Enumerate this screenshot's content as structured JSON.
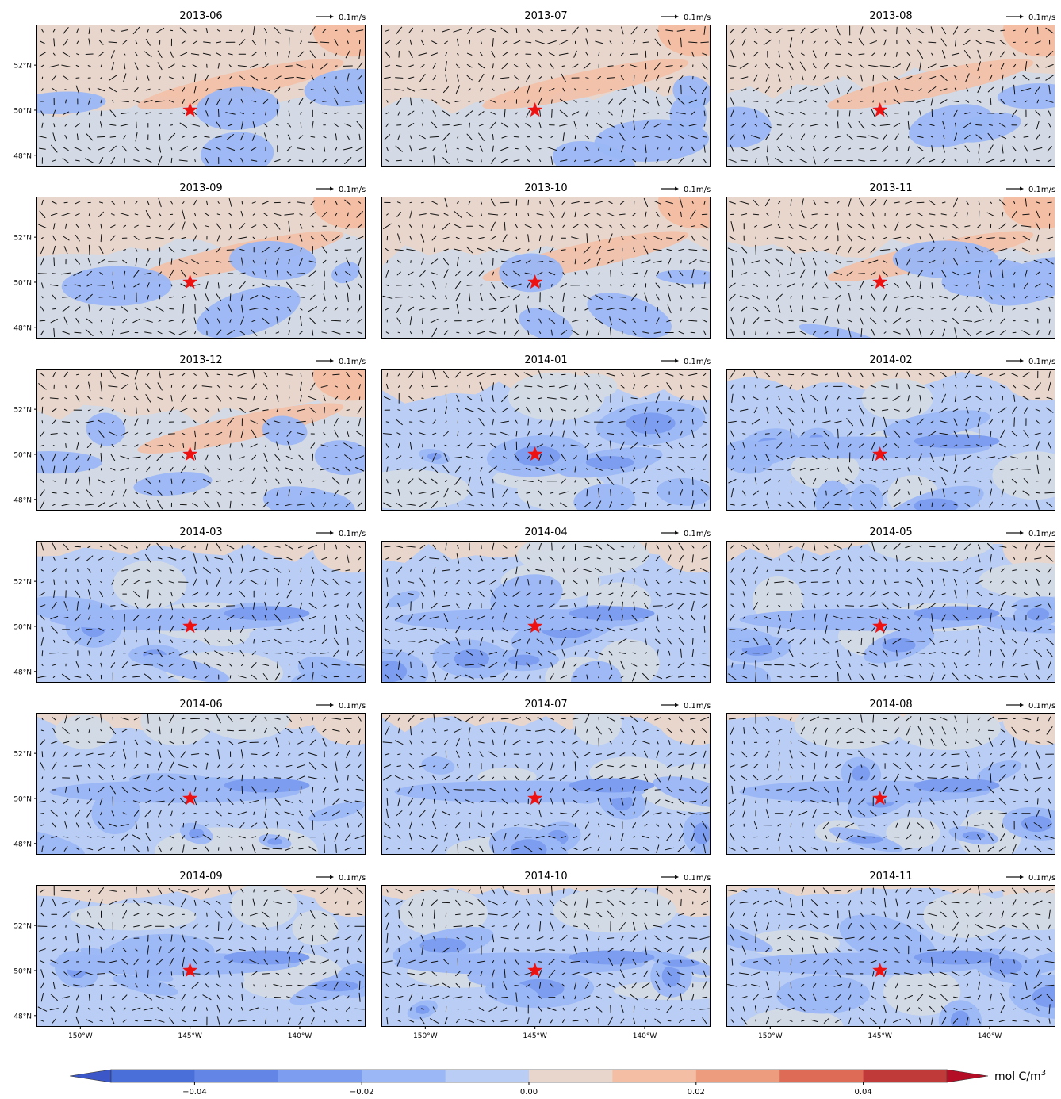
{
  "panels": [
    {
      "title": "2013-06",
      "cover": 0.75,
      "lean": 0.55
    },
    {
      "title": "2013-07",
      "cover": 0.7,
      "lean": 0.55
    },
    {
      "title": "2013-08",
      "cover": 0.55,
      "lean": 0.45
    },
    {
      "title": "2013-09",
      "cover": 0.45,
      "lean": 0.35
    },
    {
      "title": "2013-10",
      "cover": 0.5,
      "lean": 0.25
    },
    {
      "title": "2013-11",
      "cover": 0.45,
      "lean": 0.15
    },
    {
      "title": "2013-12",
      "cover": 0.4,
      "lean": 0.15
    },
    {
      "title": "2014-01",
      "cover": 0.2,
      "lean": 0.05
    },
    {
      "title": "2014-02",
      "cover": 0.1,
      "lean": 0.05
    },
    {
      "title": "2014-03",
      "cover": 0.1,
      "lean": 0.05
    },
    {
      "title": "2014-04",
      "cover": 0.1,
      "lean": 0.05
    },
    {
      "title": "2014-05",
      "cover": 0.1,
      "lean": 0.05
    },
    {
      "title": "2014-06",
      "cover": 0.1,
      "lean": 0.05
    },
    {
      "title": "2014-07",
      "cover": 0.08,
      "lean": 0.05
    },
    {
      "title": "2014-08",
      "cover": 0.08,
      "lean": 0.05
    },
    {
      "title": "2014-09",
      "cover": 0.08,
      "lean": 0.05
    },
    {
      "title": "2014-10",
      "cover": 0.05,
      "lean": 0.05
    },
    {
      "title": "2014-11",
      "cover": 0.04,
      "lean": 0.05
    }
  ],
  "reference_vector": "0.1m/s",
  "station_marker": {
    "lon": -145,
    "lat": 50,
    "color": "#ee1111"
  },
  "lat_ticks": [
    {
      "label": "52°N",
      "lat": 52
    },
    {
      "label": "50°N",
      "lat": 50
    },
    {
      "label": "48°N",
      "lat": 48
    }
  ],
  "lon_ticks": [
    {
      "label": "150°W",
      "lon": -150
    },
    {
      "label": "145°W",
      "lon": -145
    },
    {
      "label": "140°W",
      "lon": -140
    }
  ],
  "map_extent": {
    "lon_min": -152,
    "lon_max": -137,
    "lat_min": 47.5,
    "lat_max": 53.8
  },
  "colorbar": {
    "unit_label": "mol C/m",
    "unit_sup": "3",
    "colors": [
      "#4a6fd8",
      "#6386e6",
      "#7d9ef0",
      "#9bb7f6",
      "#b9cdf5",
      "#d3dae5",
      "#e8d6cc",
      "#f4bea4",
      "#ee9c7e",
      "#dd6b55",
      "#c03a3a"
    ],
    "under_color": "#3c58c8",
    "over_color": "#b40d26",
    "tick_labels": [
      {
        "label": "−0.04",
        "value": -0.04
      },
      {
        "label": "−0.02",
        "value": -0.02
      },
      {
        "label": "0.00",
        "value": 0.0
      },
      {
        "label": "0.02",
        "value": 0.02
      },
      {
        "label": "0.04",
        "value": 0.04
      }
    ],
    "vmin": -0.05,
    "vmax": 0.05
  }
}
